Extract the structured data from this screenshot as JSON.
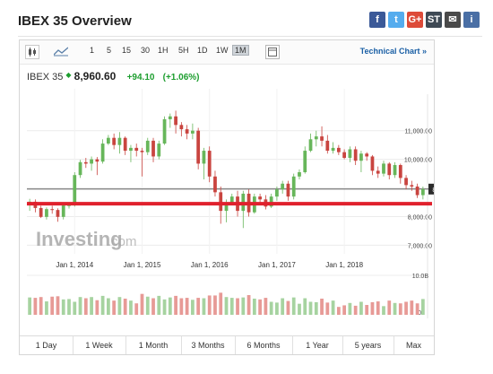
{
  "title": "IBEX 35 Overview",
  "share": [
    {
      "name": "facebook-icon",
      "glyph": "f",
      "color": "#3b5998"
    },
    {
      "name": "twitter-icon",
      "glyph": "t",
      "color": "#55acee"
    },
    {
      "name": "google-plus-icon",
      "glyph": "G+",
      "color": "#dd4b39"
    },
    {
      "name": "stocktwits-icon",
      "glyph": "ST",
      "color": "#3f4a55"
    },
    {
      "name": "email-icon",
      "glyph": "✉",
      "color": "#4a4a4a"
    },
    {
      "name": "info-icon",
      "glyph": "i",
      "color": "#4a6fa5"
    }
  ],
  "toolbar": {
    "timeframes": [
      "1",
      "5",
      "15",
      "30",
      "1H",
      "5H",
      "1D",
      "1W",
      "1M"
    ],
    "active": "1M",
    "technical_chart": "Technical Chart »"
  },
  "quote": {
    "name": "IBEX 35",
    "price": "8,960.60",
    "change": "+94.10",
    "change_pct": "(+1.06%)"
  },
  "watermark": {
    "brand": "Investing",
    "suffix": ".com"
  },
  "ranges": [
    "1 Day",
    "1 Week",
    "1 Month",
    "3 Months",
    "6 Months",
    "1 Year",
    "5 years",
    "Max"
  ],
  "chart_data": {
    "type": "candlestick",
    "y_ticks": [
      "11,000.00",
      "10,000.00",
      "9,000.00",
      "8,000.00",
      "7,000.00"
    ],
    "y_tick_values": [
      11000,
      10000,
      9000,
      8000,
      7000
    ],
    "ylim": [
      6700,
      12150
    ],
    "x_ticks": [
      "Jan 1, 2014",
      "Jan 1, 2015",
      "Jan 1, 2016",
      "Jan 1, 2017",
      "Jan 1, 2018"
    ],
    "x_tick_index": [
      8,
      20,
      32,
      44,
      56
    ],
    "current_label": "8,960.60",
    "current_value": 8960.6,
    "support_level": 8450,
    "volume_ticks": [
      "10.0B",
      "0"
    ],
    "volume_max": 10,
    "up_color": "#67b65a",
    "down_color": "#c9443f",
    "support_color": "#e0212d",
    "candles": [
      [
        8400,
        8520,
        8200,
        8620
      ],
      [
        8520,
        8300,
        8150,
        8600
      ],
      [
        8300,
        7990,
        7950,
        8380
      ],
      [
        7990,
        8260,
        7900,
        8320
      ],
      [
        8260,
        8230,
        8100,
        8380
      ],
      [
        8230,
        7990,
        7820,
        8290
      ],
      [
        7990,
        8390,
        7900,
        8450
      ],
      [
        8390,
        8400,
        8280,
        8500
      ],
      [
        8400,
        9450,
        8350,
        9550
      ],
      [
        9450,
        9900,
        9350,
        9980
      ],
      [
        9900,
        9850,
        9700,
        10050
      ],
      [
        9850,
        10000,
        9600,
        10100
      ],
      [
        10000,
        9920,
        9450,
        10080
      ],
      [
        9920,
        10550,
        9850,
        10700
      ],
      [
        10550,
        10750,
        10500,
        10850
      ],
      [
        10750,
        10500,
        10350,
        10900
      ],
      [
        10500,
        10750,
        10200,
        10950
      ],
      [
        10750,
        10300,
        10150,
        10800
      ],
      [
        10300,
        10400,
        9900,
        10500
      ],
      [
        10400,
        10300,
        10100,
        10550
      ],
      [
        10300,
        10250,
        9400,
        10400
      ],
      [
        10250,
        10650,
        10150,
        10750
      ],
      [
        10650,
        10100,
        9900,
        10750
      ],
      [
        10100,
        10550,
        10000,
        10650
      ],
      [
        10550,
        11400,
        10500,
        11500
      ],
      [
        11400,
        11500,
        11100,
        11600
      ],
      [
        11500,
        11200,
        10900,
        11700
      ],
      [
        11200,
        11050,
        10800,
        11300
      ],
      [
        11050,
        10900,
        10700,
        11200
      ],
      [
        10900,
        11000,
        10700,
        11250
      ],
      [
        11000,
        9850,
        9650,
        11100
      ],
      [
        9850,
        10300,
        9300,
        10400
      ],
      [
        10300,
        9400,
        9200,
        10450
      ],
      [
        9400,
        8850,
        8700,
        9600
      ],
      [
        8850,
        8200,
        7750,
        9050
      ],
      [
        8200,
        8500,
        7800,
        8600
      ],
      [
        8500,
        8700,
        8400,
        8800
      ],
      [
        8700,
        8200,
        8000,
        8900
      ],
      [
        8200,
        8800,
        7600,
        8900
      ],
      [
        8800,
        8150,
        8000,
        8950
      ],
      [
        8150,
        8700,
        8100,
        8800
      ],
      [
        8700,
        8600,
        8450,
        8800
      ],
      [
        8600,
        8350,
        8250,
        8750
      ],
      [
        8350,
        8700,
        8300,
        8800
      ],
      [
        8700,
        8950,
        8550,
        9050
      ],
      [
        8950,
        9150,
        8800,
        9250
      ],
      [
        9150,
        8700,
        8550,
        9250
      ],
      [
        8700,
        9400,
        8600,
        9500
      ],
      [
        9400,
        9550,
        9300,
        9650
      ],
      [
        9550,
        10300,
        9500,
        10450
      ],
      [
        10300,
        10700,
        10250,
        10900
      ],
      [
        10700,
        10800,
        10450,
        11000
      ],
      [
        10800,
        10650,
        10450,
        11150
      ],
      [
        10650,
        10300,
        10200,
        10850
      ],
      [
        10300,
        10400,
        10200,
        10600
      ],
      [
        10400,
        10250,
        10150,
        10500
      ],
      [
        10250,
        10050,
        10000,
        10350
      ],
      [
        10050,
        10350,
        9900,
        10450
      ],
      [
        10350,
        9950,
        9800,
        10450
      ],
      [
        9950,
        10200,
        9550,
        10300
      ],
      [
        10200,
        10100,
        9950,
        10250
      ],
      [
        10100,
        9600,
        9450,
        10150
      ],
      [
        9600,
        9500,
        9350,
        9750
      ],
      [
        9500,
        9850,
        9400,
        9950
      ],
      [
        9850,
        9450,
        9300,
        9900
      ],
      [
        9450,
        9800,
        9350,
        9900
      ],
      [
        9800,
        9350,
        9150,
        9850
      ],
      [
        9350,
        9100,
        8950,
        9450
      ],
      [
        9100,
        9050,
        8900,
        9250
      ],
      [
        9050,
        8750,
        8650,
        9150
      ],
      [
        8750,
        8960,
        8600,
        9050
      ]
    ],
    "volume": [
      4.4,
      4.3,
      4.5,
      3.4,
      4.6,
      4.7,
      3.9,
      4.0,
      3.3,
      4.5,
      4.2,
      4.5,
      3.7,
      4.8,
      4.2,
      3.6,
      4.5,
      4.1,
      3.6,
      2.9,
      5.3,
      4.6,
      4.2,
      4.8,
      3.9,
      4.4,
      4.8,
      4.2,
      4.3,
      3.8,
      4.3,
      4.2,
      4.9,
      4.9,
      5.6,
      4.5,
      4.3,
      4.2,
      4.4,
      5.0,
      4.1,
      3.9,
      4.3,
      3.3,
      3.1,
      4.2,
      3.5,
      4.4,
      2.8,
      4.2,
      3.3,
      3.2,
      4.1,
      3.1,
      3.6,
      2.0,
      2.4,
      3.0,
      2.3,
      3.3,
      2.5,
      3.2,
      3.4,
      2.2,
      3.6,
      3.0,
      2.9,
      3.3,
      3.6,
      2.9,
      4.0
    ]
  }
}
